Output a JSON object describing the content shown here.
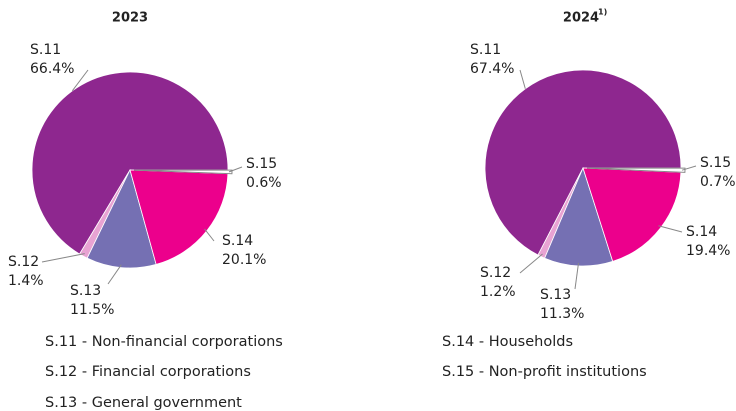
{
  "chart_data": [
    {
      "type": "pie",
      "title": "2023",
      "categories": [
        "S.11",
        "S.12",
        "S.13",
        "S.14",
        "S.15"
      ],
      "values": [
        66.4,
        1.4,
        11.5,
        20.1,
        0.6
      ],
      "value_labels": [
        "66.4%",
        "1.4%",
        "11.5%",
        "20.1%",
        "0.6%"
      ],
      "colors": [
        "#8e278f",
        "#e8a3d3",
        "#7570b3",
        "#ec008c",
        "#ffffff"
      ]
    },
    {
      "type": "pie",
      "title": "2024",
      "title_footnote": "1)",
      "categories": [
        "S.11",
        "S.12",
        "S.13",
        "S.14",
        "S.15"
      ],
      "values": [
        67.4,
        1.2,
        11.3,
        19.4,
        0.7
      ],
      "value_labels": [
        "67.4%",
        "1.2%",
        "11.3%",
        "19.4%",
        "0.7%"
      ],
      "colors": [
        "#8e278f",
        "#e8a3d3",
        "#7570b3",
        "#ec008c",
        "#ffffff"
      ]
    }
  ],
  "legend": [
    "S.11 - Non-financial corporations",
    "S.12 - Financial corporations",
    "S.13 - General government",
    "S.14 - Households",
    "S.15 - Non-profit institutions"
  ]
}
